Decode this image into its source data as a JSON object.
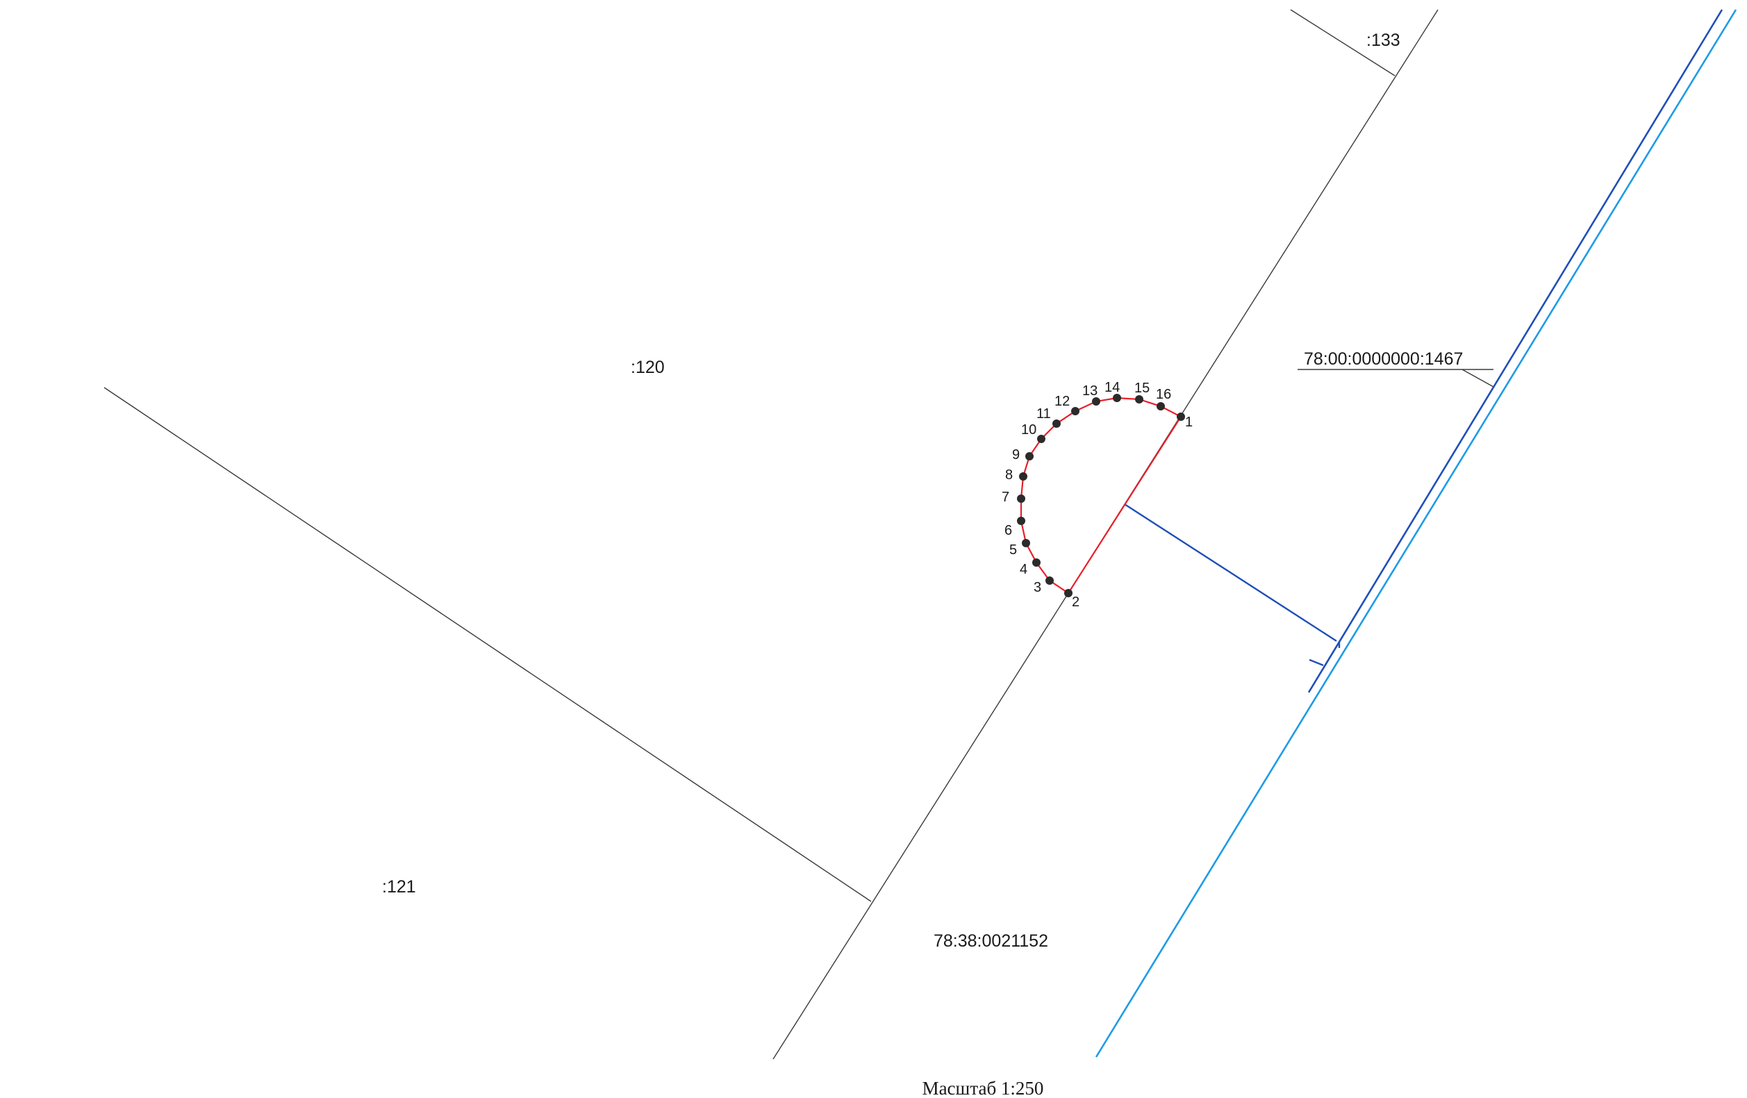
{
  "map": {
    "parcel_labels": {
      "p133": ":133",
      "p120": ":120",
      "p121": ":121",
      "quarter": "78:38:0021152",
      "road": "78:00:0000000:1467"
    },
    "point_labels": [
      "1",
      "2",
      "3",
      "4",
      "5",
      "6",
      "7",
      "8",
      "9",
      "10",
      "11",
      "12",
      "13",
      "14",
      "15",
      "16"
    ],
    "scale": "Масштаб 1:250",
    "colors": {
      "boundary": "#3a3a3a",
      "contour": "#e8202a",
      "vertex": "#2b2b2b",
      "road_dark_blue": "#1f4fb8",
      "road_light_blue": "#1e9be6"
    }
  }
}
